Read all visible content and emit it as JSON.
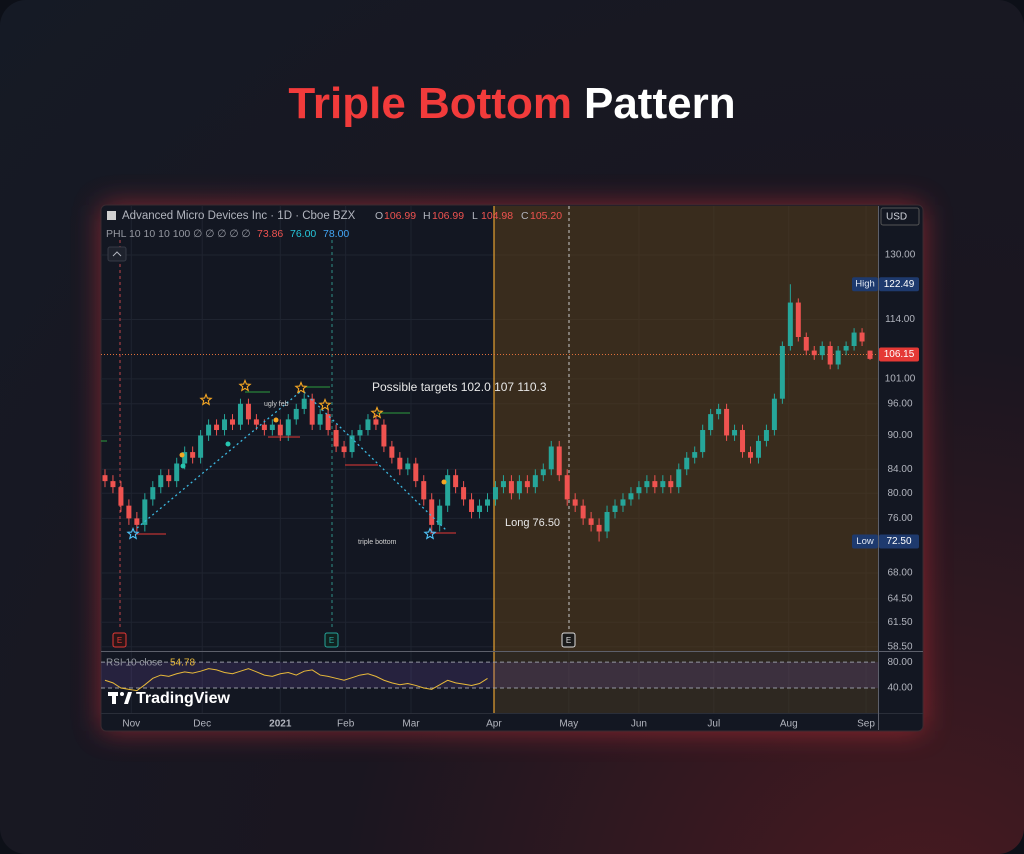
{
  "header": {
    "title_red": "Triple Bottom",
    "title_white": "Pattern"
  },
  "chart_data": {
    "type": "candlestick",
    "log_scale": true,
    "grid": true,
    "symbol": "Advanced Micro Devices Inc · 1D · Cboe BZX",
    "ohlc_legend": [
      {
        "key": "O",
        "value": "106.99"
      },
      {
        "key": "H",
        "value": "106.99"
      },
      {
        "key": "L",
        "value": "104.98"
      },
      {
        "key": "C",
        "value": "105.20"
      }
    ],
    "indicator": {
      "name": "PHL 10 10 10 100 ∅ ∅ ∅ ∅ ∅",
      "values": [
        "73.86",
        "76.00",
        "78.00"
      ]
    },
    "currency": "USD",
    "annotations": {
      "targets": "Possible targets 102.0   107    110.3",
      "ugly": "ugly feb",
      "triple": "triple bottom",
      "long": "Long  76.50",
      "events": [
        "E",
        "E",
        "E"
      ],
      "brand": "TradingView"
    },
    "up_color": "#26a69a",
    "down_color": "#ef5350",
    "xlim": [
      -0.5,
      97
    ],
    "xticks": [
      {
        "value": 3.3,
        "label": "Nov"
      },
      {
        "value": 12.2,
        "label": "Dec"
      },
      {
        "value": 22,
        "label": "2021"
      },
      {
        "value": 30.2,
        "label": "Feb"
      },
      {
        "value": 38.4,
        "label": "Mar"
      },
      {
        "value": 48.8,
        "label": "Apr"
      },
      {
        "value": 58.2,
        "label": "May"
      },
      {
        "value": 67,
        "label": "Jun"
      },
      {
        "value": 76.4,
        "label": "Jul"
      },
      {
        "value": 85.8,
        "label": "Aug"
      },
      {
        "value": 95.5,
        "label": "Sep"
      }
    ],
    "ylim": [
      58,
      142.5
    ],
    "yticks": [
      {
        "value": 130,
        "label": "130.00"
      },
      {
        "value": 114,
        "label": "114.00"
      },
      {
        "value": 101,
        "label": "101.00"
      },
      {
        "value": 96,
        "label": "96.00"
      },
      {
        "value": 90,
        "label": "90.00"
      },
      {
        "value": 84,
        "label": "84.00"
      },
      {
        "value": 80,
        "label": "80.00"
      },
      {
        "value": 76,
        "label": "76.00"
      },
      {
        "value": 68,
        "label": "68.00"
      },
      {
        "value": 64.5,
        "label": "64.50"
      },
      {
        "value": 61.5,
        "label": "61.50"
      },
      {
        "value": 58.5,
        "label": "58.50"
      }
    ],
    "high_marker": {
      "name": "High",
      "value": 122.49,
      "label": "122.49"
    },
    "low_marker": {
      "name": "Low",
      "value": 72.5,
      "label": "72.50"
    },
    "last_price": {
      "value": 106.15,
      "label": "106.15"
    },
    "x": [
      0,
      1,
      2,
      3,
      4,
      5,
      6,
      7,
      8,
      9,
      10,
      11,
      12,
      13,
      14,
      15,
      16,
      17,
      18,
      19,
      20,
      21,
      22,
      23,
      24,
      25,
      26,
      27,
      28,
      29,
      30,
      31,
      32,
      33,
      34,
      35,
      36,
      37,
      38,
      39,
      40,
      41,
      42,
      43,
      44,
      45,
      46,
      47,
      48,
      49,
      50,
      51,
      52,
      53,
      54,
      55,
      56,
      57,
      58,
      59,
      60,
      61,
      62,
      63,
      64,
      65,
      66,
      67,
      68,
      69,
      70,
      71,
      72,
      73,
      74,
      75,
      76,
      77,
      78,
      79,
      80,
      81,
      82,
      83,
      84,
      85,
      86,
      87,
      88,
      89,
      90,
      91,
      92,
      93,
      94,
      95,
      96
    ],
    "open": [
      83,
      82,
      81,
      78,
      76,
      75,
      79,
      81,
      83,
      82,
      85,
      87,
      86,
      90,
      92,
      91,
      93,
      92,
      96,
      93,
      92,
      91,
      92,
      90,
      93,
      95,
      97,
      92,
      94,
      91,
      88,
      87,
      90,
      91,
      93,
      92,
      88,
      86,
      84,
      85,
      82,
      79,
      75,
      78,
      83,
      81,
      79,
      77,
      78,
      79,
      81,
      82,
      80,
      82,
      81,
      83,
      84,
      88,
      83,
      79,
      78,
      76,
      75,
      74,
      77,
      78,
      79,
      80,
      81,
      82,
      81,
      82,
      81,
      84,
      86,
      87,
      91,
      94,
      95,
      90,
      91,
      87,
      86,
      89,
      91,
      97,
      108,
      118,
      110,
      107,
      106,
      108,
      104,
      107,
      108,
      111,
      106.99
    ],
    "high": [
      84,
      83,
      82,
      79,
      77,
      80,
      82,
      84,
      84,
      86,
      88,
      88,
      91,
      93,
      93,
      94,
      94,
      97,
      97,
      94,
      93,
      93,
      93,
      94,
      96,
      98,
      98,
      95,
      95,
      92,
      89,
      91,
      92,
      94,
      94,
      93,
      89,
      87,
      86,
      86,
      83,
      80,
      79,
      84,
      84,
      82,
      80,
      79,
      80,
      82,
      83,
      83,
      83,
      83,
      84,
      85,
      89,
      89,
      84,
      80,
      79,
      77,
      76,
      78,
      79,
      80,
      81,
      82,
      83,
      83,
      83,
      83,
      85,
      87,
      88,
      92,
      95,
      96,
      96,
      92,
      92,
      88,
      90,
      92,
      98,
      109,
      122.49,
      119,
      111,
      108,
      109,
      109,
      108,
      109,
      112,
      112,
      106.99
    ],
    "low": [
      81,
      80,
      77,
      75,
      74,
      74,
      78,
      80,
      81,
      81,
      84,
      85,
      85,
      89,
      90,
      90,
      91,
      91,
      92,
      91,
      90,
      90,
      89,
      89,
      92,
      94,
      91,
      91,
      90,
      87,
      86,
      86,
      89,
      90,
      91,
      87,
      85,
      83,
      83,
      81,
      78,
      74,
      74,
      77,
      80,
      78,
      76,
      76,
      77,
      78,
      80,
      79,
      79,
      80,
      80,
      82,
      83,
      82,
      78,
      77,
      75,
      74,
      72.5,
      73,
      76,
      77,
      78,
      79,
      80,
      80,
      80,
      80,
      80,
      83,
      85,
      86,
      90,
      93,
      89,
      89,
      86,
      85,
      85,
      88,
      90,
      96,
      107,
      109,
      106,
      105,
      105,
      103,
      103,
      106,
      107,
      108,
      104.98
    ],
    "close": [
      82,
      81,
      78,
      76,
      75,
      79,
      81,
      83,
      82,
      85,
      87,
      86,
      90,
      92,
      91,
      93,
      92,
      96,
      93,
      92,
      91,
      92,
      90,
      93,
      95,
      97,
      92,
      94,
      91,
      88,
      87,
      90,
      91,
      93,
      92,
      88,
      86,
      84,
      85,
      82,
      79,
      75,
      78,
      83,
      81,
      79,
      77,
      78,
      79,
      81,
      82,
      80,
      82,
      81,
      83,
      84,
      88,
      83,
      79,
      78,
      76,
      75,
      74,
      77,
      78,
      79,
      80,
      81,
      82,
      81,
      82,
      81,
      84,
      86,
      87,
      91,
      94,
      95,
      90,
      91,
      87,
      86,
      89,
      91,
      97,
      108,
      118,
      110,
      107,
      106,
      108,
      104,
      107,
      108,
      111,
      109,
      105.2
    ],
    "rsi": {
      "name": "RSI 10 close",
      "color": "#e8b93a",
      "last_label": "54.78",
      "ylim": [
        3,
        91
      ],
      "yticks": [
        {
          "value": 80,
          "label": "80.00"
        },
        {
          "value": 40,
          "label": "40.00"
        }
      ],
      "values": [
        52,
        48,
        40,
        38,
        36,
        45,
        55,
        60,
        58,
        62,
        65,
        63,
        66,
        70,
        68,
        64,
        62,
        66,
        70,
        65,
        60,
        58,
        62,
        64,
        60,
        66,
        68,
        60,
        58,
        55,
        52,
        56,
        60,
        62,
        58,
        52,
        48,
        45,
        47,
        44,
        40,
        38,
        45,
        52,
        48,
        46,
        44,
        47,
        54.78
      ]
    }
  }
}
